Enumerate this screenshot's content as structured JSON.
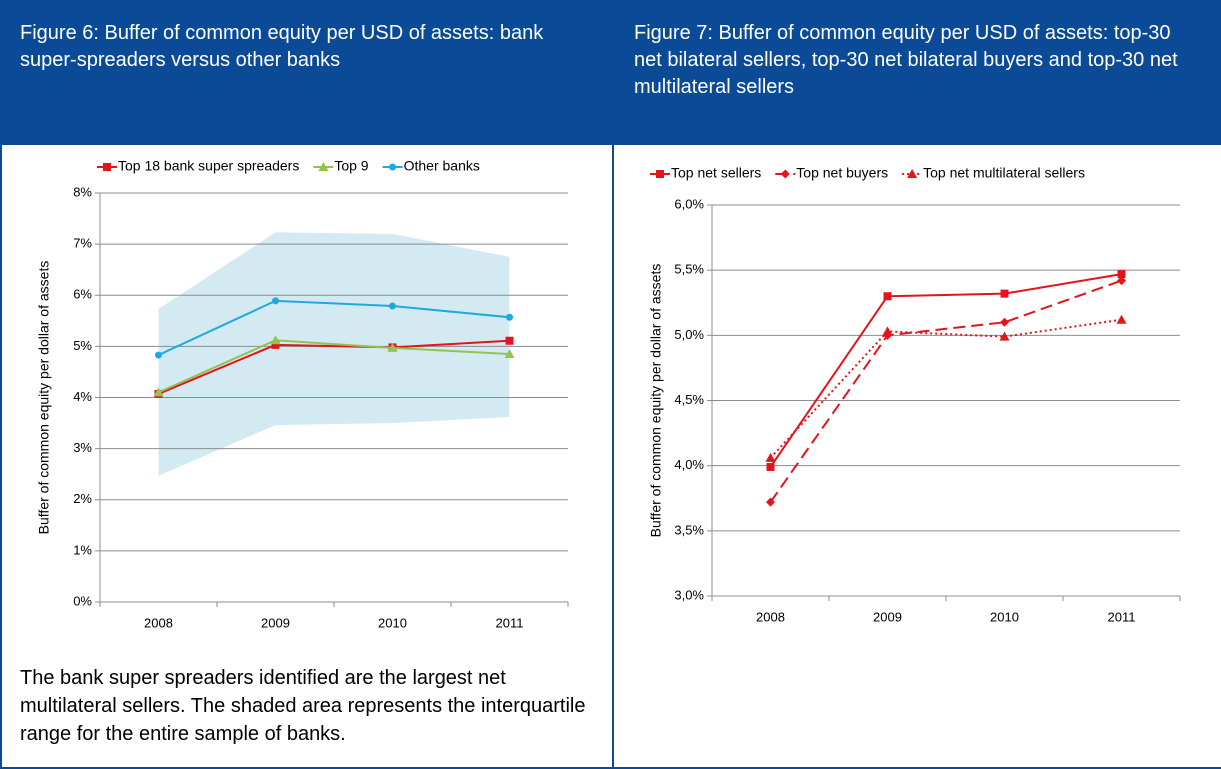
{
  "chart_data": [
    {
      "type": "line",
      "title": "Figure 6: Buffer of common equity per USD of assets: bank super-spreaders versus other banks",
      "y_label": "Buffer of common equity per dollar of assets",
      "categories": [
        "2008",
        "2009",
        "2010",
        "2011"
      ],
      "series": [
        {
          "name": "Top 18 bank super spreaders",
          "color": "#e3141b",
          "marker": "square",
          "dash": "solid",
          "values": [
            4.07,
            5.03,
            4.98,
            5.11
          ]
        },
        {
          "name": "Top 9",
          "color": "#92c353",
          "marker": "triangle",
          "dash": "solid",
          "values": [
            4.1,
            5.12,
            4.97,
            4.85
          ]
        },
        {
          "name": "Other banks",
          "color": "#1fa9e1",
          "marker": "circle",
          "dash": "solid",
          "values": [
            4.83,
            5.89,
            5.79,
            5.57
          ]
        }
      ],
      "interquartile_range": {
        "color": "#d4eaf2",
        "lower": [
          2.47,
          3.46,
          3.5,
          3.62
        ],
        "upper": [
          5.73,
          7.23,
          7.2,
          6.75
        ]
      },
      "ylim": [
        0,
        8
      ],
      "yticks": [
        {
          "value": 0,
          "label": "0%"
        },
        {
          "value": 1,
          "label": "1%"
        },
        {
          "value": 2,
          "label": "2%"
        },
        {
          "value": 3,
          "label": "3%"
        },
        {
          "value": 4,
          "label": "4%"
        },
        {
          "value": 5,
          "label": "5%"
        },
        {
          "value": 6,
          "label": "6%"
        },
        {
          "value": 7,
          "label": "7%"
        },
        {
          "value": 8,
          "label": "8%"
        }
      ],
      "grid": true,
      "legend": "top",
      "note": "The bank super spreaders identified are the largest net multilateral sellers. The shaded area represents the interquartile range for the entire sample of banks."
    },
    {
      "type": "line",
      "title": "Figure 7: Buffer of common equity per USD of assets: top-30 net bilateral sellers, top-30 net bilateral buyers and top-30 net multilateral sellers",
      "y_label": "Buffer of common equity per dollar of assets",
      "categories": [
        "2008",
        "2009",
        "2010",
        "2011"
      ],
      "series": [
        {
          "name": "Top net sellers",
          "color": "#e3141b",
          "marker": "square",
          "dash": "solid",
          "values": [
            3.99,
            5.3,
            5.32,
            5.47
          ]
        },
        {
          "name": "Top net buyers",
          "color": "#e3141b",
          "marker": "diamond",
          "dash": "dashed",
          "values": [
            3.72,
            5.0,
            5.1,
            5.42
          ]
        },
        {
          "name": "Top net multilateral sellers",
          "color": "#e3141b",
          "marker": "triangle",
          "dash": "dotted",
          "values": [
            4.06,
            5.03,
            4.99,
            5.12
          ]
        }
      ],
      "ylim": [
        3,
        6
      ],
      "yticks": [
        {
          "value": 3,
          "label": "3,0%"
        },
        {
          "value": 3.5,
          "label": "3,5%"
        },
        {
          "value": 4,
          "label": "4,0%"
        },
        {
          "value": 4.5,
          "label": "4,5%"
        },
        {
          "value": 5,
          "label": "5,0%"
        },
        {
          "value": 5.5,
          "label": "5,5%"
        },
        {
          "value": 6,
          "label": "6,0%"
        }
      ],
      "grid": true,
      "legend": "top"
    }
  ]
}
